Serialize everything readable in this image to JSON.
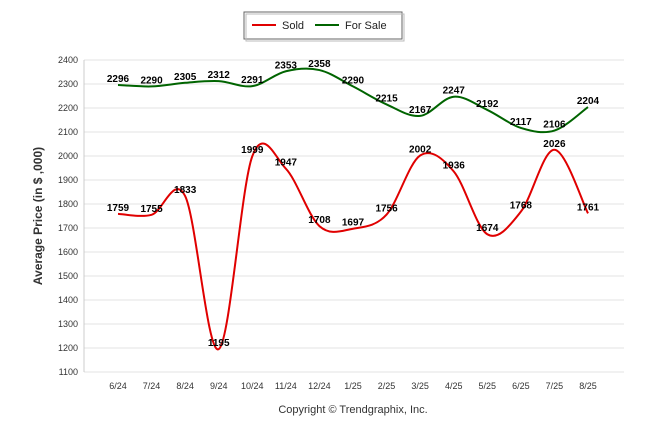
{
  "chart_data": {
    "type": "line",
    "title": "",
    "xlabel": "",
    "ylabel": "Average Price (in $ ,000)",
    "categories": [
      "6/24",
      "7/24",
      "8/24",
      "9/24",
      "10/24",
      "11/24",
      "12/24",
      "1/25",
      "2/25",
      "3/25",
      "4/25",
      "5/25",
      "6/25",
      "7/25",
      "8/25"
    ],
    "yticks": [
      1100,
      1200,
      1300,
      1400,
      1500,
      1600,
      1700,
      1800,
      1900,
      2000,
      2100,
      2200,
      2300,
      2400
    ],
    "ylim": [
      1100,
      2400
    ],
    "grid": true,
    "legend_position": "top-center",
    "series": [
      {
        "name": "Sold",
        "color": "#e00000",
        "values": [
          1759,
          1755,
          1833,
          1195,
          1999,
          1947,
          1708,
          1697,
          1756,
          2002,
          1936,
          1674,
          1768,
          2026,
          1761
        ]
      },
      {
        "name": "For Sale",
        "color": "#006400",
        "values": [
          2296,
          2290,
          2305,
          2312,
          2291,
          2353,
          2358,
          2290,
          2215,
          2167,
          2247,
          2192,
          2117,
          2106,
          2204
        ]
      }
    ]
  },
  "footer": {
    "copyright": "Copyright © Trendgraphix, Inc."
  }
}
